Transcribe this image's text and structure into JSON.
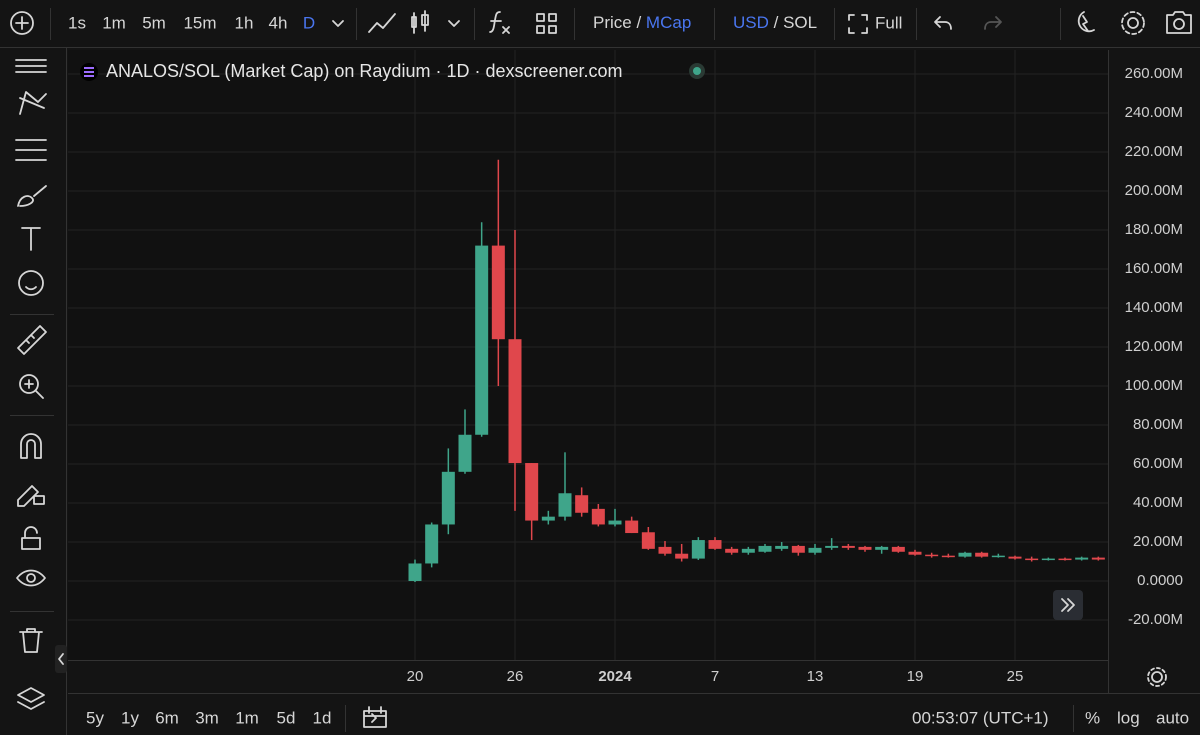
{
  "chart_data": {
    "type": "candlestick",
    "title": "ANALOS/SOL (Market Cap) on Raydium · 1D · dexscreener.com",
    "categories": [
      "20",
      null,
      null,
      null,
      null,
      null,
      "26",
      null,
      null,
      null,
      null,
      null,
      "2024",
      null,
      null,
      null,
      null,
      null,
      "7",
      null,
      null,
      null,
      null,
      null,
      "13",
      null,
      null,
      null,
      null,
      null,
      "19",
      null,
      null,
      null,
      null,
      null,
      "25",
      null,
      null,
      null,
      null,
      null
    ],
    "open": [
      0,
      9000000.0,
      29000000.0,
      56000000.0,
      75000000.0,
      172000000.0,
      124000000.0,
      60500000.0,
      31000000.0,
      33000000.0,
      44000000.0,
      37000000.0,
      29000000.0,
      31000000.0,
      25000000.0,
      17500000.0,
      14000000.0,
      11500000.0,
      21000000.0,
      16500000.0,
      14500000.0,
      15000000.0,
      16500000.0,
      18000000.0,
      14500000.0,
      17000000.0,
      18000000.0,
      17500000.0,
      16000000.0,
      17500000.0,
      15000000.0,
      13500000.0,
      13000000.0,
      12500000.0,
      14500000.0,
      12500000.0,
      12500000.0,
      11500000.0,
      11000000.0,
      11500000.0,
      11000000.0,
      12000000.0
    ],
    "high": [
      11000000.0,
      30000000.0,
      68000000.0,
      88000000.0,
      184000000.0,
      216000000.0,
      180000000.0,
      60500000.0,
      36000000.0,
      66000000.0,
      48000000.0,
      39500000.0,
      37000000.0,
      33000000.0,
      27700000.0,
      20500000.0,
      19000000.0,
      22500000.0,
      22500000.0,
      17500000.0,
      17500000.0,
      19000000.0,
      20000000.0,
      18500000.0,
      19000000.0,
      22000000.0,
      19000000.0,
      18000000.0,
      18000000.0,
      18000000.0,
      16000000.0,
      14500000.0,
      14000000.0,
      15000000.0,
      15000000.0,
      14000000.0,
      13000000.0,
      12500000.0,
      12000000.0,
      12000000.0,
      12500000.0,
      12500000.0
    ],
    "low": [
      -500000.0,
      7000000.0,
      24000000.0,
      55000000.0,
      74000000.0,
      100000000.0,
      36000000.0,
      21000000.0,
      29000000.0,
      31000000.0,
      33000000.0,
      28000000.0,
      28000000.0,
      24600000.0,
      16000000.0,
      13000000.0,
      10000000.0,
      10800000.0,
      16000000.0,
      13500000.0,
      13500000.0,
      14500000.0,
      15500000.0,
      13000000.0,
      13500000.0,
      16000000.0,
      16000000.0,
      15000000.0,
      14000000.0,
      14500000.0,
      13000000.0,
      12000000.0,
      12000000.0,
      12000000.0,
      12000000.0,
      12000000.0,
      11000000.0,
      10000000.0,
      10500000.0,
      10500000.0,
      10500000.0,
      10500000.0
    ],
    "close": [
      9000000.0,
      29000000.0,
      56000000.0,
      75000000.0,
      172000000.0,
      124000000.0,
      60500000.0,
      31000000.0,
      33000000.0,
      45000000.0,
      35000000.0,
      29000000.0,
      31000000.0,
      24600000.0,
      16500000.0,
      14000000.0,
      11500000.0,
      21000000.0,
      16500000.0,
      14500000.0,
      16500000.0,
      18000000.0,
      18000000.0,
      14500000.0,
      17000000.0,
      18000000.0,
      17000000.0,
      16000000.0,
      17500000.0,
      15000000.0,
      13500000.0,
      13000000.0,
      12500000.0,
      14500000.0,
      12500000.0,
      13000000.0,
      11500000.0,
      11000000.0,
      11500000.0,
      11000000.0,
      12000000.0,
      11000000.0
    ],
    "up_color": "#3fa58a",
    "down_color": "#e0474c",
    "ylim": [
      -40500000.0,
      272300000.0
    ],
    "yticks": [
      {
        "value": -20000000.0,
        "label": "-20.00M"
      },
      {
        "value": 0,
        "label": "0.0000"
      },
      {
        "value": 20000000.0,
        "label": "20.00M"
      },
      {
        "value": 40000000.0,
        "label": "40.00M"
      },
      {
        "value": 60000000.0,
        "label": "60.00M"
      },
      {
        "value": 80000000.0,
        "label": "80.00M"
      },
      {
        "value": 100000000.0,
        "label": "100.00M"
      },
      {
        "value": 120000000.0,
        "label": "120.00M"
      },
      {
        "value": 140000000.0,
        "label": "140.00M"
      },
      {
        "value": 160000000.0,
        "label": "160.00M"
      },
      {
        "value": 180000000.0,
        "label": "180.00M"
      },
      {
        "value": 200000000.0,
        "label": "200.00M"
      },
      {
        "value": 220000000.0,
        "label": "220.00M"
      },
      {
        "value": 240000000.0,
        "label": "240.00M"
      },
      {
        "value": 260000000.0,
        "label": "260.00M"
      }
    ],
    "grid": true
  },
  "ui": {
    "timeframes": [
      "1s",
      "1m",
      "5m",
      "15m",
      "1h",
      "4h",
      "D"
    ],
    "price": "Price /",
    "mcap": "MCap",
    "usd": "USD",
    "sol": "/ SOL",
    "full": "Full",
    "ranges": [
      "5y",
      "1y",
      "6m",
      "3m",
      "1m",
      "5d",
      "1d"
    ],
    "clock": "00:53:07 (UTC+1)",
    "percent": "%",
    "log": "log",
    "auto": "auto"
  }
}
